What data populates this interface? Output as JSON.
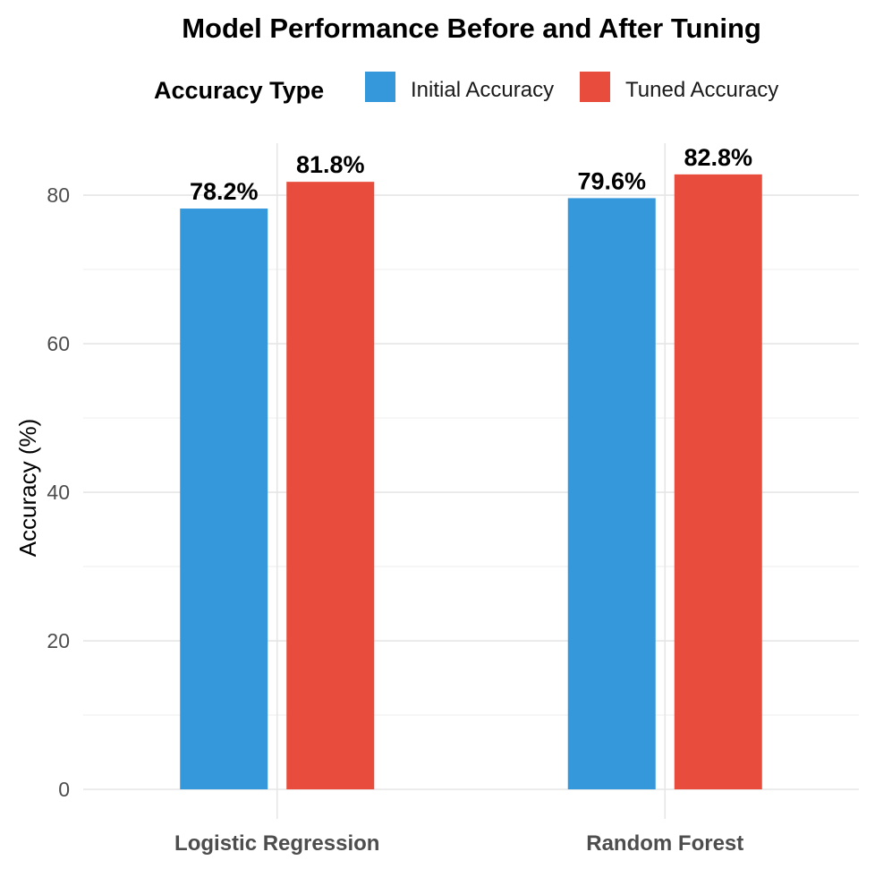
{
  "chart_data": {
    "type": "bar",
    "title": "Model Performance Before and After Tuning",
    "xlabel": "",
    "ylabel": "Accuracy (%)",
    "categories": [
      "Logistic Regression",
      "Random Forest"
    ],
    "series": [
      {
        "name": "Initial Accuracy",
        "values": [
          78.2,
          79.6
        ],
        "labels": [
          "78.2%",
          "79.6%"
        ],
        "color": "#3498db"
      },
      {
        "name": "Tuned Accuracy",
        "values": [
          81.8,
          82.8
        ],
        "labels": [
          "81.8%",
          "82.8%"
        ],
        "color": "#e74c3c"
      }
    ],
    "legend_title": "Accuracy Type",
    "legend_position": "top",
    "ylim": [
      0,
      87
    ],
    "yticks": [
      0,
      20,
      40,
      60,
      80
    ],
    "grid": true
  }
}
